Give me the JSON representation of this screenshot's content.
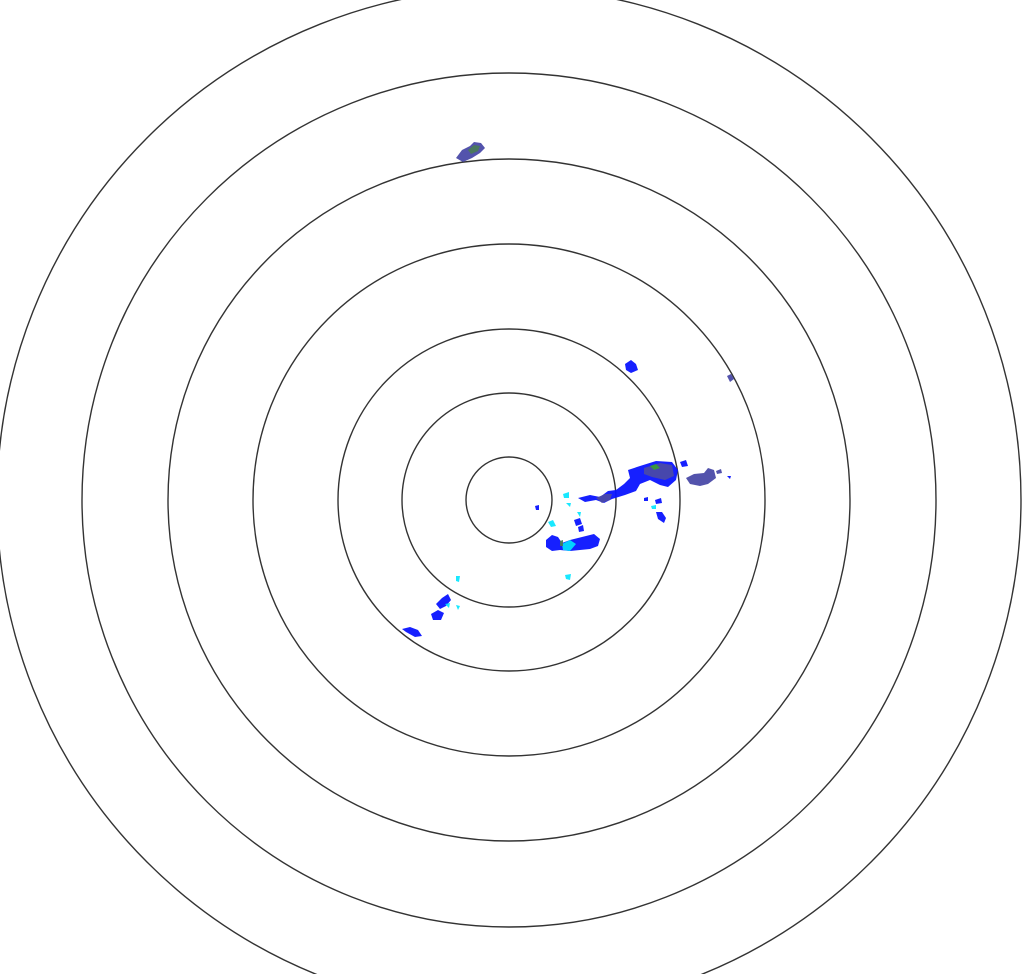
{
  "radar": {
    "ring_color": "#333333",
    "background": "#ffffff",
    "echo_colors": {
      "light": "#00e5ff",
      "moderate": "#0a14ff",
      "mixed": "#4a4aa8",
      "heavy": "#4a7a5a",
      "core": "#3a9a3a"
    }
  }
}
